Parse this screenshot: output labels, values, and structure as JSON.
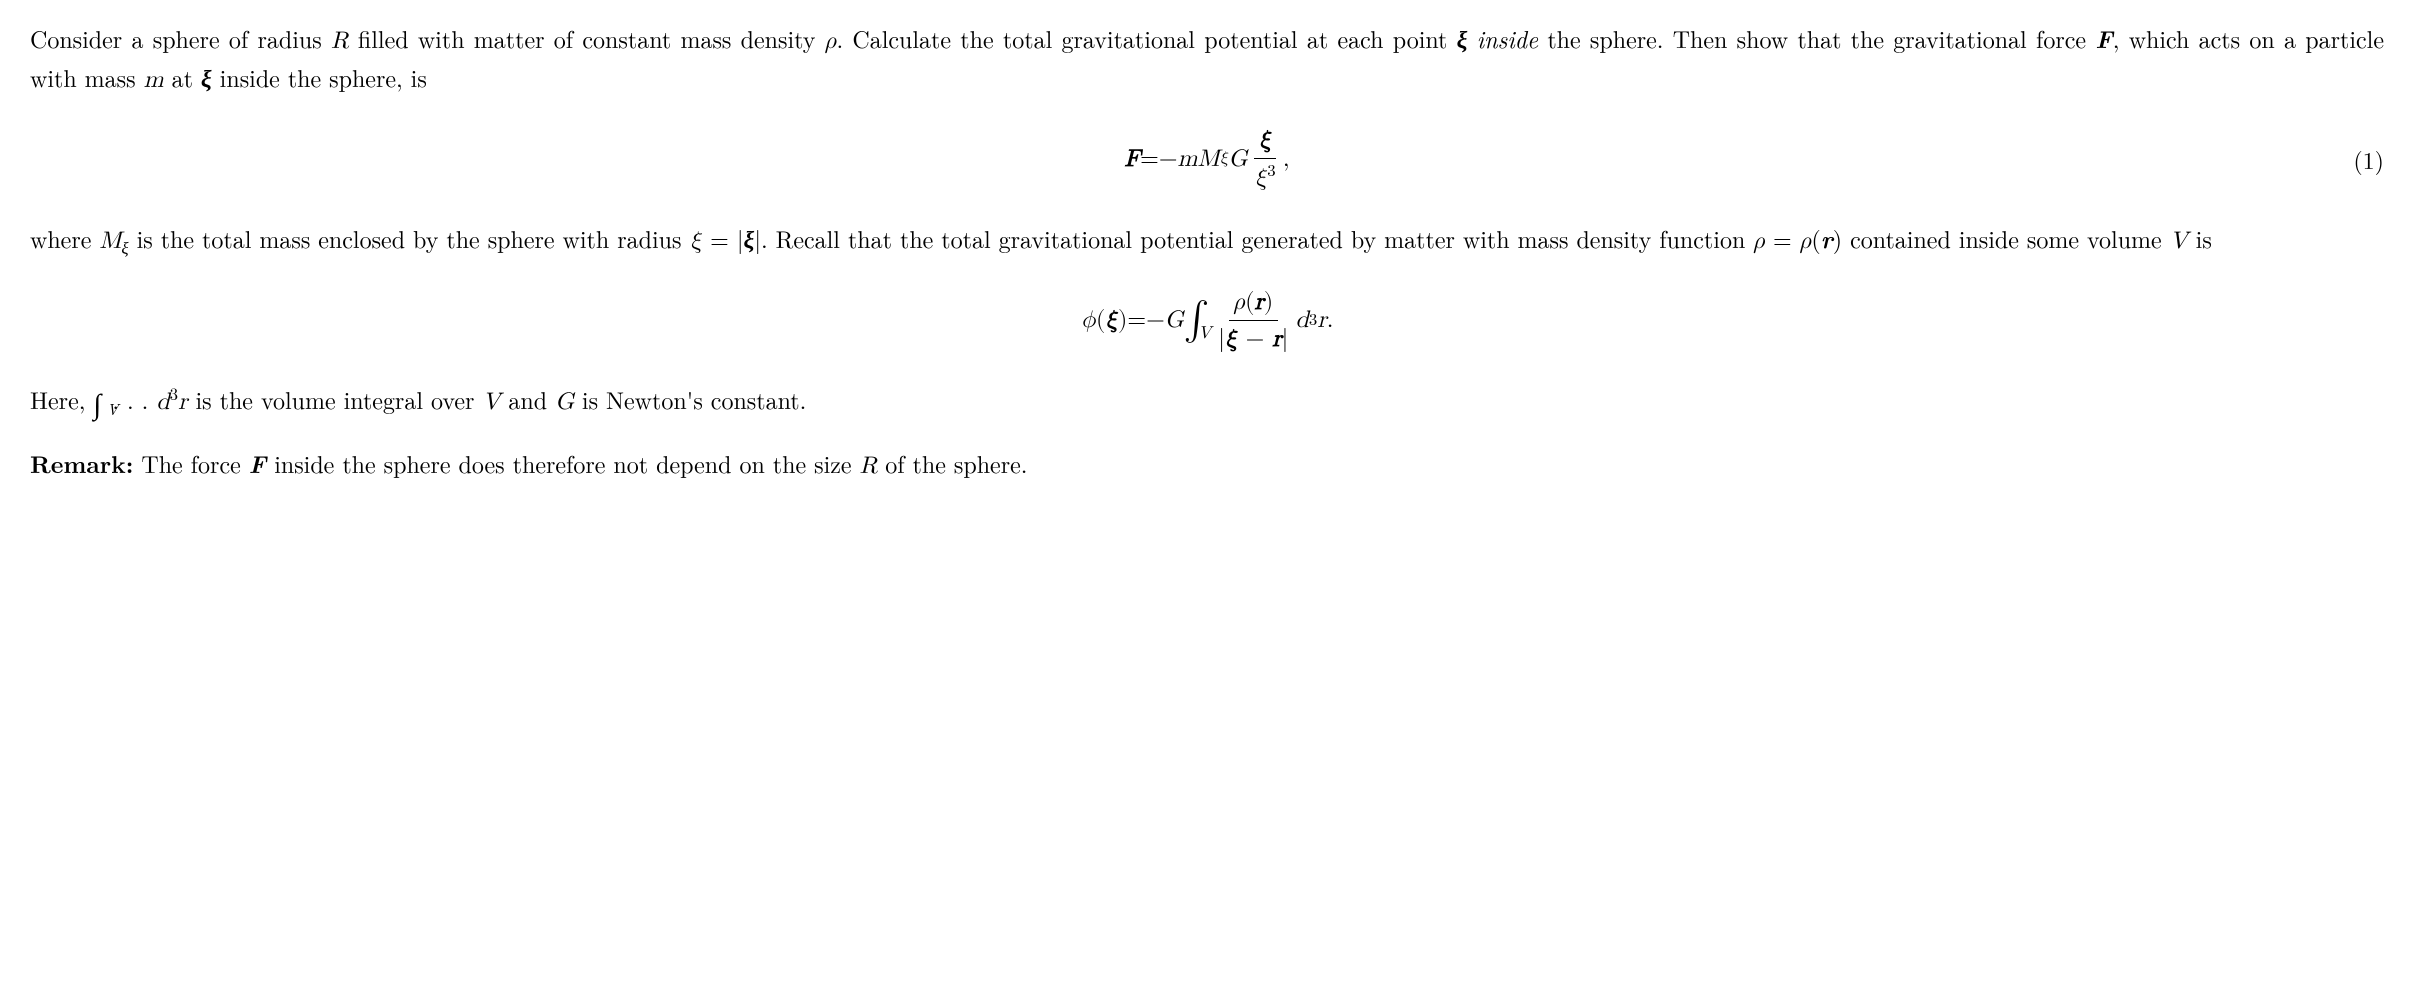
{
  "para1": {
    "t1": "Consider a sphere of radius ",
    "R": "R",
    "t2": " filled with matter of constant mass density ",
    "rho": "ρ",
    "t3": ". Calculate the total gravitational potential at each point ",
    "xi": "ξ",
    "t4": " ",
    "inside": "inside",
    "t5": " the sphere. Then show that the gravitational force ",
    "F": "F",
    "t6": ", which acts on a particle with mass ",
    "m": "m",
    "t7": " at ",
    "xi2": "ξ",
    "t8": " inside the sphere, is"
  },
  "eq1": {
    "lhs_F": "F",
    "eq": " = ",
    "minus": "−",
    "m": "m",
    "M": "M",
    "M_sub": "ξ",
    "G": "G",
    "num_xi": "ξ",
    "den_xi": "ξ",
    "den_sup": "3",
    "comma": ",",
    "number": "(1)"
  },
  "para2": {
    "t1": "where ",
    "M": "M",
    "M_sub": "ξ",
    "t2": " is the total mass enclosed by the sphere with radius ",
    "xi": "ξ",
    "eq": " = ",
    "bar1": "|",
    "xi_bold": "ξ",
    "bar2": "|",
    "t3": ". Recall that the total gravitational potential generated by matter with mass density function ",
    "rho": "ρ",
    "eq2": " = ",
    "rho2": "ρ",
    "lparen": "(",
    "r": "r",
    "rparen": ")",
    "t4": " contained inside some volume ",
    "V": "V",
    "t5": " is"
  },
  "eq2": {
    "phi": "ϕ",
    "lparen": "(",
    "xi": "ξ",
    "rparen": ")",
    "eq": " = ",
    "minus": "−",
    "G": "G",
    "int": "∫",
    "int_sub": "V",
    "num_rho": "ρ",
    "num_lp": "(",
    "num_r": "r",
    "num_rp": ")",
    "den_bar1": "|",
    "den_xi": "ξ",
    "den_minus": " − ",
    "den_r": "r",
    "den_bar2": "|",
    "d": "d",
    "sup3": "3",
    "r2": "r",
    "period": "."
  },
  "para3": {
    "t1": "Here, ",
    "int": "∫",
    "int_sub": "V",
    "dots": " . . . ",
    "d": "d",
    "sup3": "3",
    "r": "r",
    "t2": " is the volume integral over ",
    "V": "V",
    "t3": " and ",
    "G": "G",
    "t4": " is Newton's constant."
  },
  "para4": {
    "label": "Remark:",
    "t1": " The force ",
    "F": "F",
    "t2": " inside the sphere does therefore not depend on the size ",
    "R": "R",
    "t3": " of the sphere."
  }
}
